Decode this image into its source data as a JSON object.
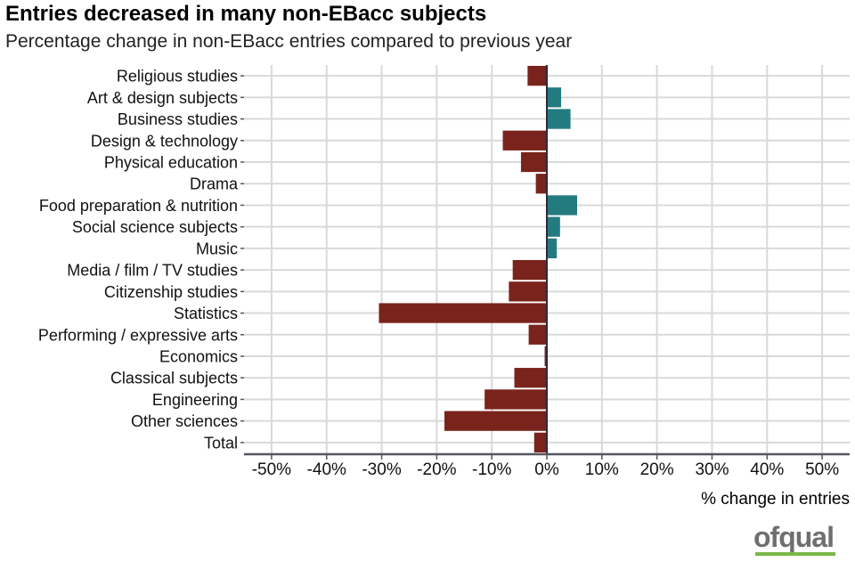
{
  "chart_data": {
    "type": "bar",
    "orientation": "horizontal",
    "title": "Entries decreased in many non-EBacc subjects",
    "subtitle": "Percentage change in non-EBacc entries compared to previous year",
    "xlabel": "% change in entries",
    "ylabel": "",
    "xlim": [
      -55,
      55
    ],
    "x_ticks": [
      -50,
      -40,
      -30,
      -20,
      -10,
      0,
      10,
      20,
      30,
      40,
      50
    ],
    "x_tick_labels": [
      "-50%",
      "-40%",
      "-30%",
      "-20%",
      "-10%",
      "0%",
      "10%",
      "20%",
      "30%",
      "40%",
      "50%"
    ],
    "grid": true,
    "legend": "none",
    "categories": [
      "Religious studies",
      "Art & design subjects",
      "Business studies",
      "Design & technology",
      "Physical education",
      "Drama",
      "Food preparation & nutrition",
      "Social science subjects",
      "Music",
      "Media / film / TV studies",
      "Citizenship studies",
      "Statistics",
      "Performing / expressive arts",
      "Economics",
      "Classical subjects",
      "Engineering",
      "Other sciences",
      "Total"
    ],
    "values": [
      -3.5,
      2.6,
      4.3,
      -8.0,
      -4.7,
      -2.0,
      5.5,
      2.4,
      1.8,
      -6.2,
      -6.9,
      -30.5,
      -3.3,
      -0.4,
      -5.9,
      -11.3,
      -18.6,
      -2.3
    ],
    "colors": {
      "negative": "#7a231d",
      "positive": "#237b80"
    }
  },
  "logo": {
    "text": "ofqual"
  }
}
